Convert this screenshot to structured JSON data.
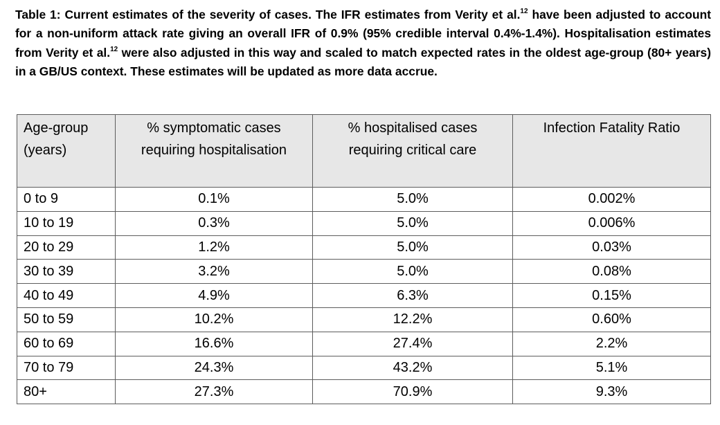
{
  "caption": {
    "part1": "Table 1: Current estimates of the severity of cases. The IFR estimates from Verity et al.",
    "ref1": "12",
    "part2": " have been adjusted to account for a non-uniform attack rate giving an overall IFR of 0.9% (95% credible interval 0.4%-1.4%). Hospitalisation estimates from Verity et al.",
    "ref2": "12",
    "part3": " were also adjusted in this way and scaled to match expected rates in the oldest age-group (80+ years) in a GB/US context. These estimates will be updated as more data accrue."
  },
  "table": {
    "headers": [
      {
        "line1": "Age-group",
        "line2": "(years)"
      },
      {
        "line1": "% symptomatic cases",
        "line2": "requiring hospitalisation"
      },
      {
        "line1": "% hospitalised cases",
        "line2": "requiring critical care"
      },
      {
        "line1": "Infection Fatality Ratio",
        "line2": ""
      }
    ],
    "rows": [
      [
        "0 to 9",
        "0.1%",
        "5.0%",
        "0.002%"
      ],
      [
        "10 to 19",
        "0.3%",
        "5.0%",
        "0.006%"
      ],
      [
        "20 to 29",
        "1.2%",
        "5.0%",
        "0.03%"
      ],
      [
        "30 to 39",
        "3.2%",
        "5.0%",
        "0.08%"
      ],
      [
        "40 to 49",
        "4.9%",
        "6.3%",
        "0.15%"
      ],
      [
        "50 to 59",
        "10.2%",
        "12.2%",
        "0.60%"
      ],
      [
        "60 to 69",
        "16.6%",
        "27.4%",
        "2.2%"
      ],
      [
        "70 to 79",
        "24.3%",
        "43.2%",
        "5.1%"
      ],
      [
        "80+",
        "27.3%",
        "70.9%",
        "9.3%"
      ]
    ]
  }
}
